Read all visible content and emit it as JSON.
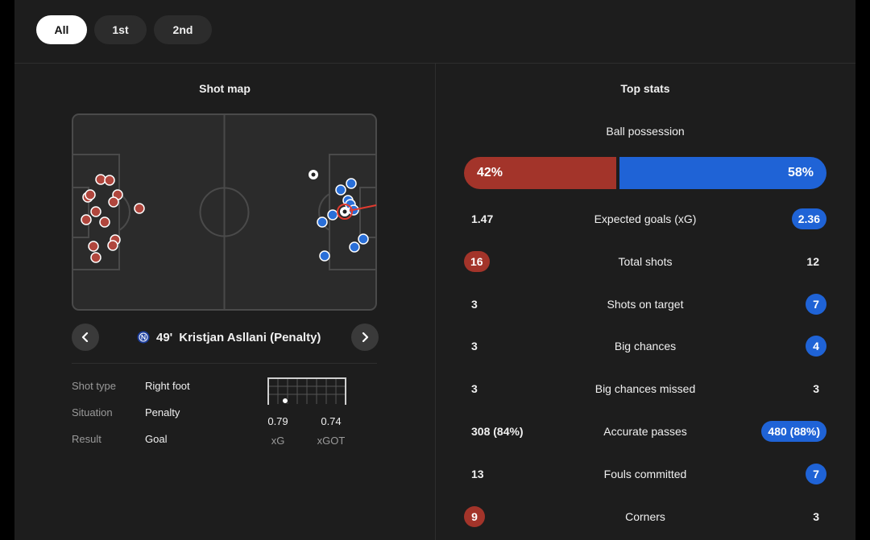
{
  "tabs": [
    {
      "label": "All",
      "active": true
    },
    {
      "label": "1st",
      "active": false
    },
    {
      "label": "2nd",
      "active": false
    }
  ],
  "shot_map": {
    "title": "Shot map",
    "selected_shot": {
      "minute": "49'",
      "player": "Kristjan Asllani (Penalty)"
    },
    "details": [
      {
        "key": "Shot type",
        "value": "Right foot"
      },
      {
        "key": "Situation",
        "value": "Penalty"
      },
      {
        "key": "Result",
        "value": "Goal"
      }
    ],
    "xg": {
      "value": "0.79",
      "label": "xG"
    },
    "xgot": {
      "value": "0.74",
      "label": "xGOT"
    }
  },
  "top_stats": {
    "title": "Top stats",
    "possession": {
      "label": "Ball possession",
      "home": "42%",
      "away": "58%",
      "home_fraction": 0.42
    },
    "rows": [
      {
        "label": "Expected goals (xG)",
        "home": "1.47",
        "away": "2.36",
        "highlight": "away"
      },
      {
        "label": "Total shots",
        "home": "16",
        "away": "12",
        "highlight": "home"
      },
      {
        "label": "Shots on target",
        "home": "3",
        "away": "7",
        "highlight": "away"
      },
      {
        "label": "Big chances",
        "home": "3",
        "away": "4",
        "highlight": "away"
      },
      {
        "label": "Big chances missed",
        "home": "3",
        "away": "3",
        "highlight": "none"
      },
      {
        "label": "Accurate passes",
        "home": "308 (84%)",
        "away": "480 (88%)",
        "highlight": "away"
      },
      {
        "label": "Fouls committed",
        "home": "13",
        "away": "7",
        "highlight": "away"
      },
      {
        "label": "Corners",
        "home": "9",
        "away": "3",
        "highlight": "home"
      }
    ]
  },
  "colors": {
    "home": "#a3342a",
    "away": "#1f63d6",
    "background": "#1d1d1d"
  }
}
